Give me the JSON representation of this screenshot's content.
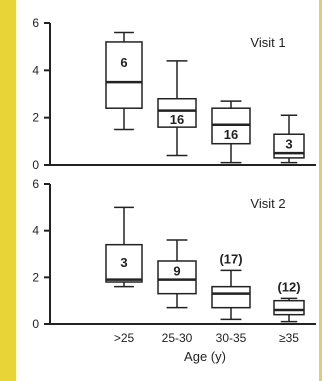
{
  "colors": {
    "background_band": "#e8d436",
    "panel": "#ffffff",
    "ink": "#222222"
  },
  "chart_data": [
    {
      "type": "box",
      "panel_label": "Visit 1",
      "categories": [
        ">25",
        "25-30",
        "30-35",
        "≥35"
      ],
      "ylim": [
        0,
        6
      ],
      "yticks": [
        0,
        2,
        4,
        6
      ],
      "boxes": [
        {
          "category": ">25",
          "min": 1.5,
          "q1": 2.4,
          "median": 3.5,
          "q3": 5.2,
          "max": 5.6,
          "label": "6"
        },
        {
          "category": "25-30",
          "min": 0.4,
          "q1": 1.6,
          "median": 2.3,
          "q3": 2.8,
          "max": 4.4,
          "label": "16"
        },
        {
          "category": "30-35",
          "min": 0.1,
          "q1": 0.9,
          "median": 1.7,
          "q3": 2.4,
          "max": 2.7,
          "label": "16"
        },
        {
          "category": "≥35",
          "min": 0.1,
          "q1": 0.3,
          "median": 0.5,
          "q3": 1.3,
          "max": 2.1,
          "label": "3"
        }
      ]
    },
    {
      "type": "box",
      "panel_label": "Visit 2",
      "categories": [
        ">25",
        "25-30",
        "30-35",
        "≥35"
      ],
      "ylim": [
        0,
        6
      ],
      "yticks": [
        0,
        2,
        4,
        6
      ],
      "xlabel": "Age (y)",
      "boxes": [
        {
          "category": ">25",
          "min": 1.6,
          "q1": 1.8,
          "median": 1.9,
          "q3": 3.4,
          "max": 5.0,
          "label": "3"
        },
        {
          "category": "25-30",
          "min": 0.7,
          "q1": 1.3,
          "median": 1.9,
          "q3": 2.7,
          "max": 3.6,
          "label": "9"
        },
        {
          "category": "30-35",
          "min": 0.2,
          "q1": 0.7,
          "median": 1.3,
          "q3": 1.6,
          "max": 2.3,
          "label": "(17)"
        },
        {
          "category": "≥35",
          "min": 0.1,
          "q1": 0.4,
          "median": 0.6,
          "q3": 1.0,
          "max": 1.1,
          "label": "(12)"
        }
      ]
    }
  ]
}
